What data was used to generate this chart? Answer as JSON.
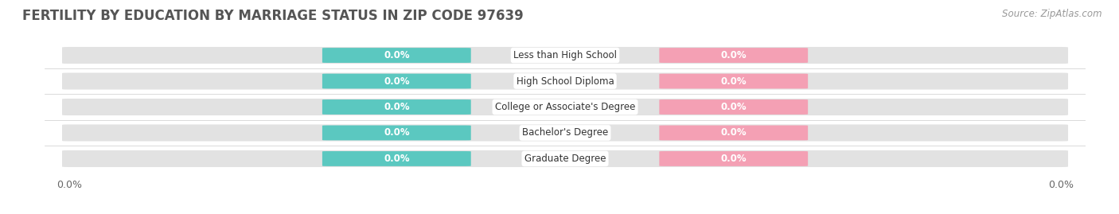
{
  "title": "FERTILITY BY EDUCATION BY MARRIAGE STATUS IN ZIP CODE 97639",
  "source": "Source: ZipAtlas.com",
  "categories": [
    "Less than High School",
    "High School Diploma",
    "College or Associate's Degree",
    "Bachelor's Degree",
    "Graduate Degree"
  ],
  "married_values": [
    0.0,
    0.0,
    0.0,
    0.0,
    0.0
  ],
  "unmarried_values": [
    0.0,
    0.0,
    0.0,
    0.0,
    0.0
  ],
  "married_color": "#5bc8c0",
  "unmarried_color": "#f4a0b4",
  "bar_bg_color": "#e2e2e2",
  "title_fontsize": 12,
  "source_fontsize": 8.5,
  "background_color": "#ffffff"
}
